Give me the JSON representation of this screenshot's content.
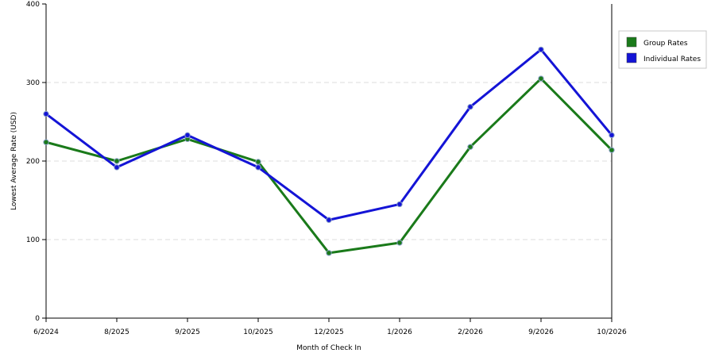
{
  "chart_data": {
    "type": "line",
    "categories": [
      "6/2024",
      "8/2025",
      "9/2025",
      "10/2025",
      "12/2025",
      "1/2026",
      "2/2026",
      "9/2026",
      "10/2026"
    ],
    "series": [
      {
        "name": "Group Rates",
        "color": "#1a7a1a",
        "values": [
          224,
          200,
          228,
          199,
          83,
          96,
          218,
          305,
          214
        ]
      },
      {
        "name": "Individual Rates",
        "color": "#1414d6",
        "values": [
          260,
          192,
          233,
          192,
          125,
          145,
          269,
          342,
          233
        ]
      }
    ],
    "xlabel": "Month of Check In",
    "ylabel": "Lowest Average Rate (USD)",
    "ylim": [
      0,
      400
    ],
    "yticks": [
      0,
      100,
      200,
      300,
      400
    ],
    "grid": "horizontal dashed",
    "legend": "right"
  }
}
